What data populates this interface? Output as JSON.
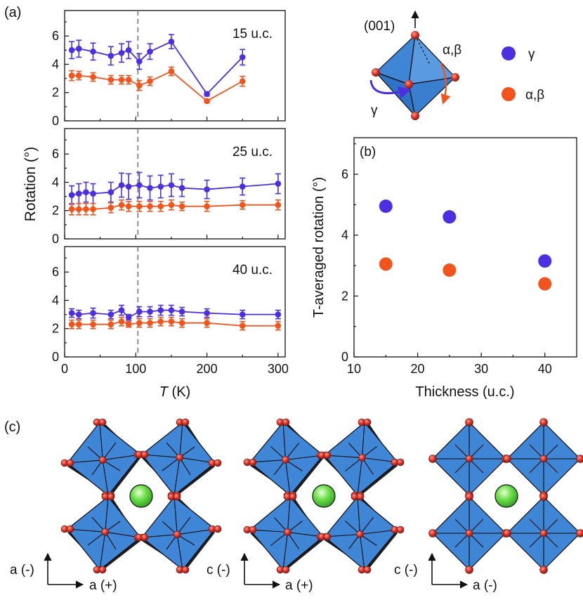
{
  "figure": {
    "panel_a_label": "(a)",
    "panel_b_label": "(b)",
    "panel_c_label": "(c)",
    "inset_direction_label": "(001)",
    "inset_label_alpha_beta": "α,β",
    "inset_label_gamma": "γ",
    "legend": [
      {
        "label": "γ",
        "color": "#4d2ee0"
      },
      {
        "label": "α,β",
        "color": "#f2541d"
      }
    ],
    "structures": [
      {
        "vertical_axis": "a (-)",
        "horizontal_axis": "a (+)"
      },
      {
        "vertical_axis": "c (-)",
        "horizontal_axis": "a (+)"
      },
      {
        "vertical_axis": "c (-)",
        "horizontal_axis": "a (-)"
      }
    ]
  },
  "colors": {
    "gamma": "#4d2ee0",
    "alphabeta": "#f2541d",
    "octahedron": "#3f86d6",
    "oxygen": "#c0302a",
    "cation": "#49d631"
  },
  "chart_data": [
    {
      "type": "line",
      "panel": "a-top",
      "annotation": "15 u.c.",
      "xlim": [
        0,
        310
      ],
      "ylim": [
        0,
        7.8
      ],
      "yticks": [
        "0",
        "2",
        "4",
        "6"
      ],
      "xticks": [
        "0",
        "100",
        "200",
        "300"
      ],
      "vline_x": 103,
      "series": [
        {
          "name": "γ",
          "x": [
            10,
            20,
            40,
            65,
            80,
            90,
            105,
            120,
            150,
            200,
            250
          ],
          "values": [
            5.0,
            5.1,
            4.9,
            4.6,
            4.8,
            5.0,
            4.2,
            4.9,
            5.6,
            1.9,
            4.5
          ],
          "errors": [
            0.6,
            0.6,
            0.6,
            0.65,
            0.65,
            0.6,
            0.55,
            0.55,
            0.5,
            0.15,
            0.55
          ]
        },
        {
          "name": "α,β",
          "x": [
            10,
            20,
            40,
            65,
            80,
            90,
            105,
            120,
            150,
            200,
            250
          ],
          "values": [
            3.2,
            3.2,
            3.1,
            2.9,
            2.9,
            2.9,
            2.5,
            2.8,
            3.5,
            1.4,
            2.8
          ],
          "errors": [
            0.35,
            0.3,
            0.3,
            0.3,
            0.3,
            0.3,
            0.35,
            0.3,
            0.3,
            0.12,
            0.35
          ]
        }
      ]
    },
    {
      "type": "line",
      "panel": "a-middle",
      "annotation": "25 u.c.",
      "ylabel": "Rotation (°)",
      "xlim": [
        0,
        310
      ],
      "ylim": [
        0,
        7.8
      ],
      "yticks": [
        "0",
        "2",
        "4",
        "6"
      ],
      "xticks": [
        "0",
        "100",
        "200",
        "300"
      ],
      "vline_x": 103,
      "series": [
        {
          "name": "γ",
          "x": [
            10,
            20,
            30,
            40,
            65,
            80,
            90,
            105,
            120,
            135,
            150,
            165,
            200,
            250,
            300
          ],
          "values": [
            3.1,
            3.2,
            3.3,
            3.2,
            3.3,
            3.8,
            3.7,
            3.8,
            3.6,
            3.7,
            3.8,
            3.6,
            3.5,
            3.7,
            3.9
          ],
          "errors": [
            0.65,
            0.7,
            0.7,
            0.7,
            0.7,
            0.85,
            0.9,
            0.9,
            0.85,
            0.8,
            0.8,
            0.6,
            0.65,
            0.6,
            0.7
          ]
        },
        {
          "name": "α,β",
          "x": [
            10,
            20,
            30,
            40,
            65,
            80,
            90,
            105,
            120,
            135,
            150,
            165,
            200,
            250,
            300
          ],
          "values": [
            2.1,
            2.1,
            2.1,
            2.1,
            2.2,
            2.4,
            2.3,
            2.3,
            2.3,
            2.3,
            2.4,
            2.3,
            2.3,
            2.4,
            2.4
          ],
          "errors": [
            0.4,
            0.4,
            0.4,
            0.4,
            0.35,
            0.35,
            0.35,
            0.35,
            0.35,
            0.35,
            0.35,
            0.3,
            0.35,
            0.3,
            0.35
          ]
        }
      ]
    },
    {
      "type": "line",
      "panel": "a-bottom",
      "annotation": "40 u.c.",
      "xlabel_italic": "T",
      "xlabel_unit": " (K)",
      "xlim": [
        0,
        310
      ],
      "ylim": [
        0,
        7.8
      ],
      "yticks": [
        "0",
        "2",
        "4",
        "6"
      ],
      "xticks": [
        "0",
        "100",
        "200",
        "300"
      ],
      "vline_x": 103,
      "series": [
        {
          "name": "γ",
          "x": [
            10,
            20,
            40,
            65,
            80,
            90,
            105,
            120,
            135,
            150,
            165,
            200,
            250,
            300
          ],
          "values": [
            3.1,
            3.0,
            3.1,
            3.0,
            3.3,
            2.8,
            3.2,
            3.2,
            3.3,
            3.3,
            3.2,
            3.1,
            3.0,
            3.0
          ],
          "errors": [
            0.3,
            0.3,
            0.35,
            0.3,
            0.35,
            0.2,
            0.35,
            0.35,
            0.35,
            0.35,
            0.3,
            0.3,
            0.3,
            0.3
          ]
        },
        {
          "name": "α,β",
          "x": [
            10,
            20,
            40,
            65,
            80,
            90,
            105,
            120,
            135,
            150,
            165,
            200,
            250,
            300
          ],
          "values": [
            2.3,
            2.3,
            2.3,
            2.3,
            2.5,
            2.3,
            2.4,
            2.4,
            2.5,
            2.5,
            2.4,
            2.4,
            2.2,
            2.2
          ],
          "errors": [
            0.3,
            0.3,
            0.3,
            0.3,
            0.3,
            0.2,
            0.3,
            0.3,
            0.3,
            0.3,
            0.3,
            0.3,
            0.3,
            0.3
          ]
        }
      ]
    },
    {
      "type": "scatter",
      "panel": "b",
      "xlabel": "Thickness (u.c.)",
      "ylabel": "T-averaged rotation (°)",
      "xlim": [
        10,
        45
      ],
      "ylim": [
        0,
        7.2
      ],
      "yticks": [
        "0",
        "2",
        "4",
        "6"
      ],
      "xticks": [
        "10",
        "20",
        "30",
        "40"
      ],
      "series": [
        {
          "name": "γ",
          "x": [
            15,
            25,
            40
          ],
          "values": [
            4.95,
            4.6,
            3.15
          ]
        },
        {
          "name": "α,β",
          "x": [
            15,
            25,
            40
          ],
          "values": [
            3.05,
            2.85,
            2.4
          ]
        }
      ]
    }
  ]
}
